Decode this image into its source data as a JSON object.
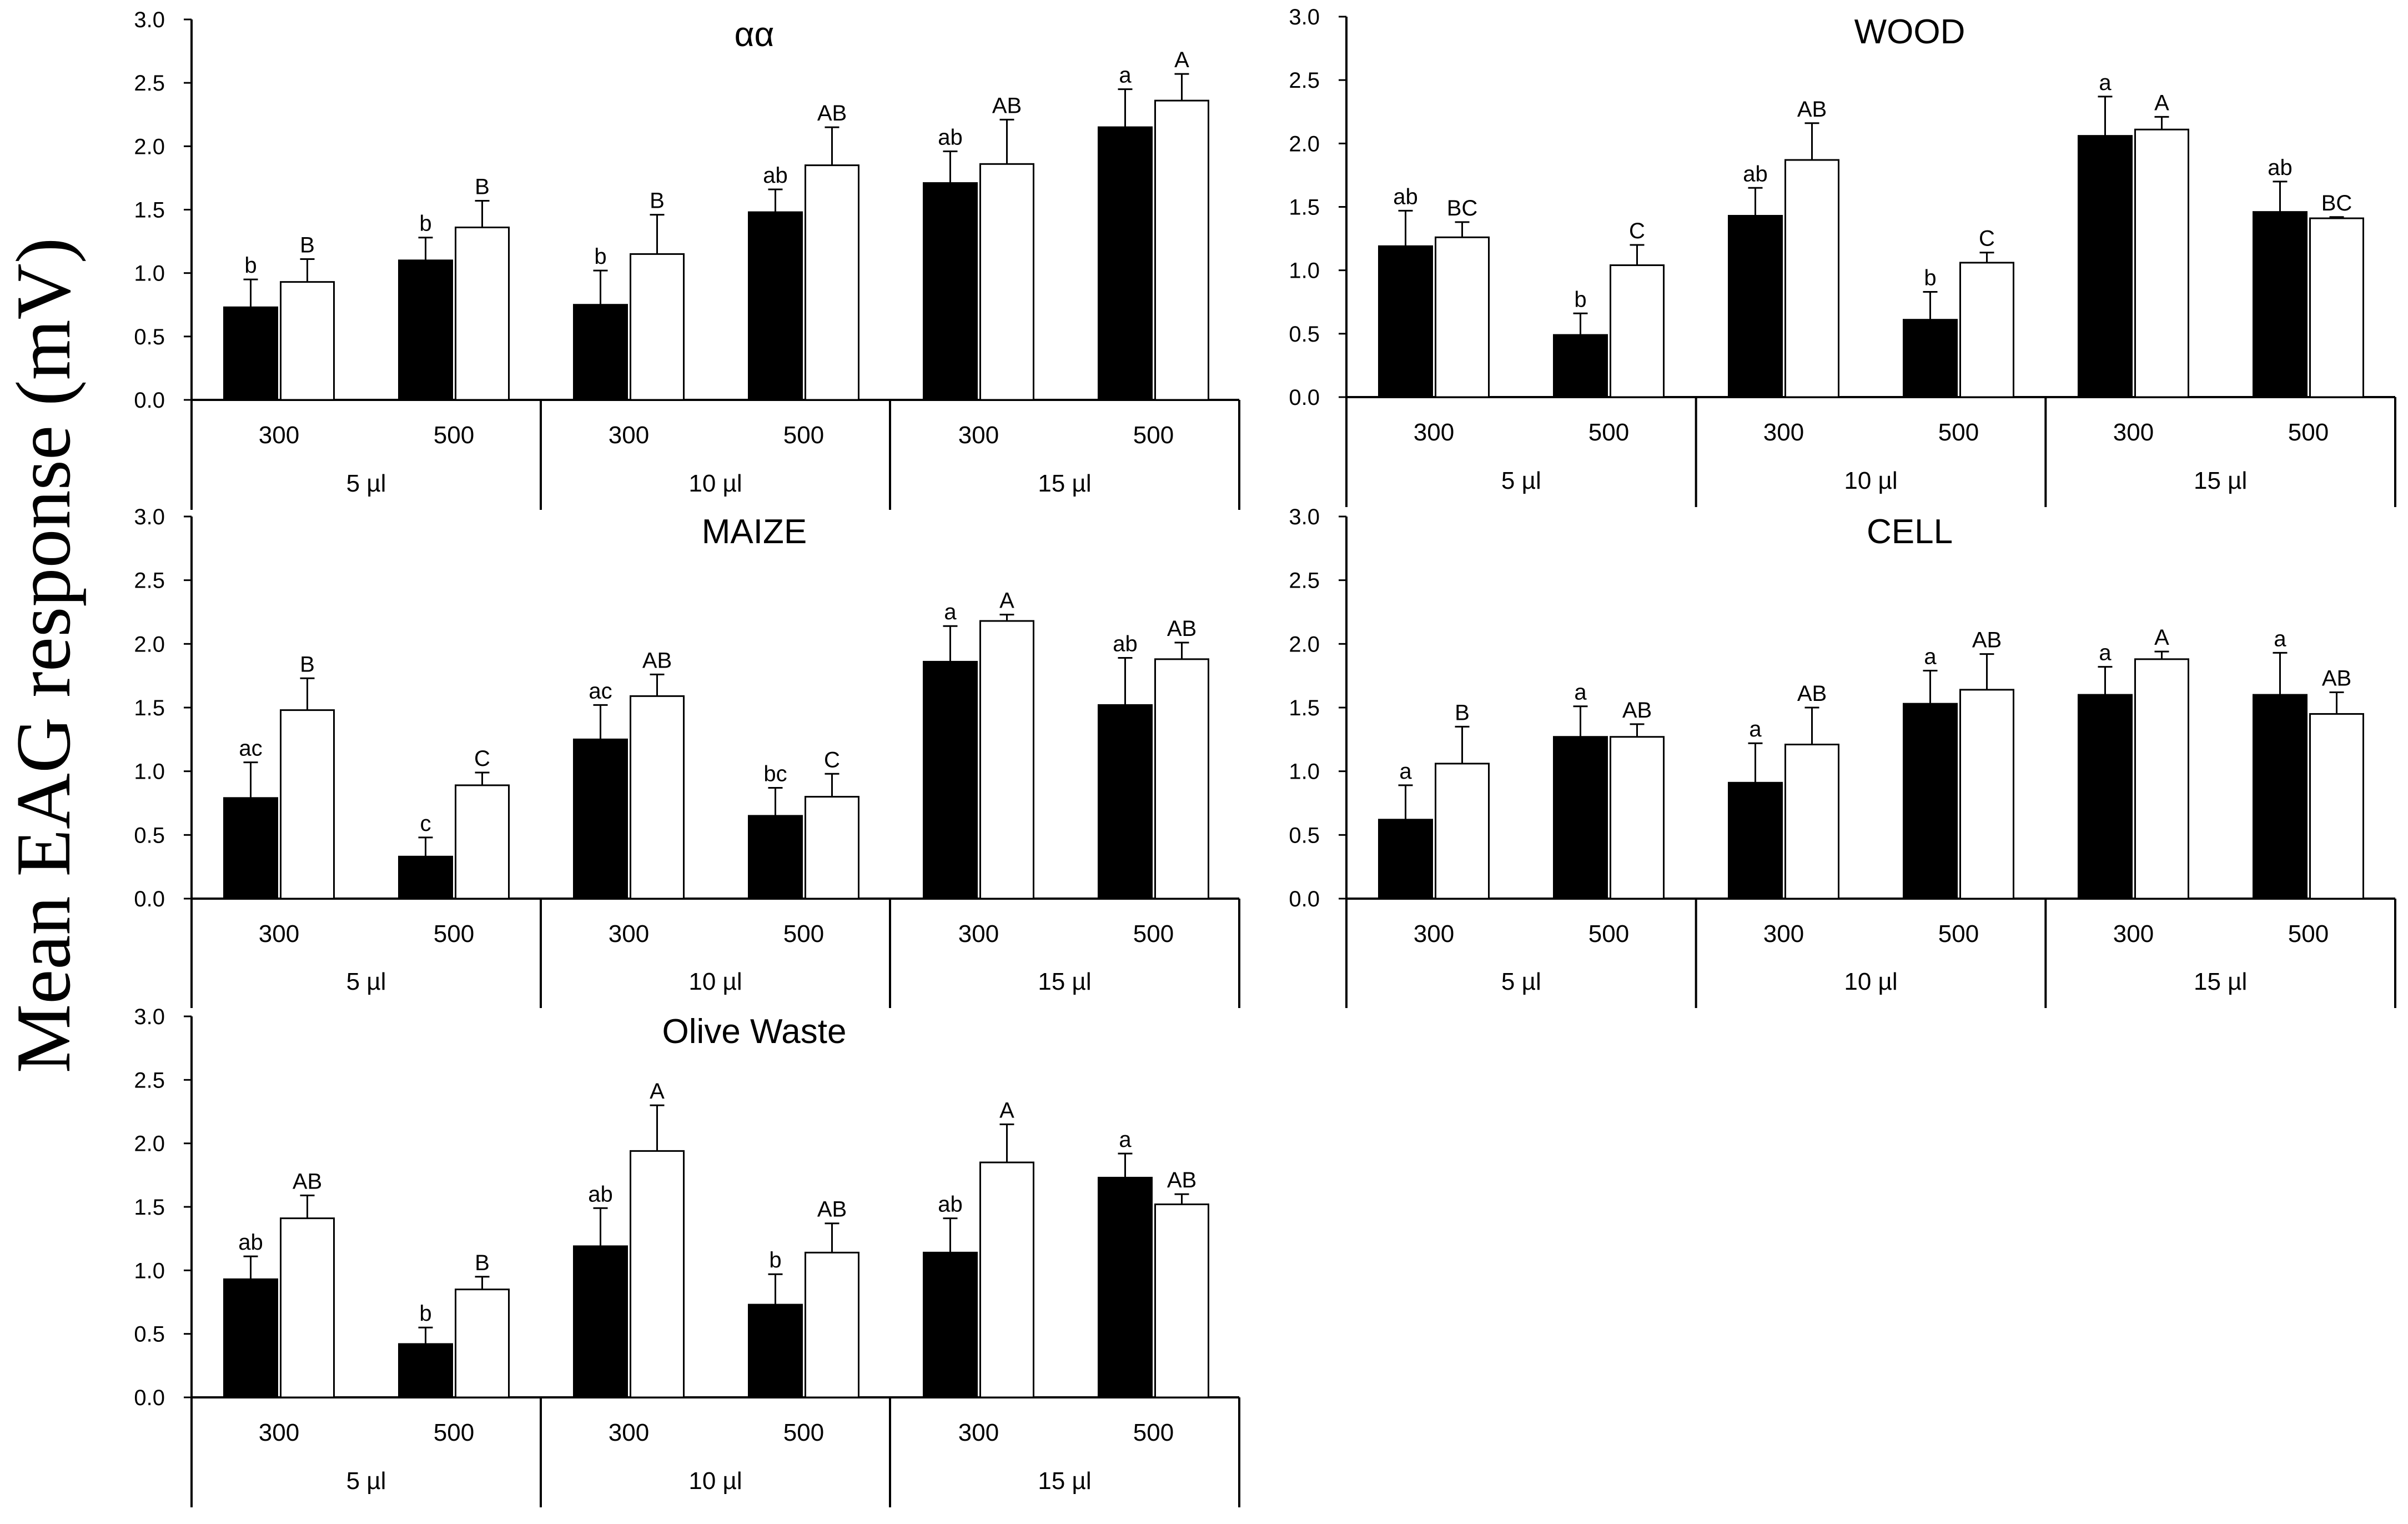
{
  "y_axis_title": "Mean EAG response (mV)",
  "colors": {
    "black_bar": "#000000",
    "white_bar": "#ffffff",
    "axis": "#000000"
  },
  "chart_data": [
    {
      "type": "bar",
      "title": "αα",
      "xlabel": "",
      "ylabel": "Mean EAG response (mV)",
      "ylim": [
        0,
        3.0
      ],
      "yticks": [
        "0.0",
        "0.5",
        "1.0",
        "1.5",
        "2.0",
        "2.5",
        "3.0"
      ],
      "groups": [
        "5 µl",
        "10 µl",
        "15 µl"
      ],
      "categories": [
        "300",
        "500",
        "300",
        "500",
        "300",
        "500"
      ],
      "series": [
        {
          "name": "black",
          "values": [
            0.73,
            1.1,
            0.75,
            1.48,
            1.71,
            2.15
          ],
          "errors": [
            0.22,
            0.18,
            0.27,
            0.18,
            0.25,
            0.3
          ],
          "labels": [
            "b",
            "b",
            "b",
            "ab",
            "ab",
            "a"
          ]
        },
        {
          "name": "white",
          "values": [
            0.93,
            1.36,
            1.15,
            1.85,
            1.86,
            2.36
          ],
          "errors": [
            0.18,
            0.21,
            0.31,
            0.3,
            0.35,
            0.21
          ],
          "labels": [
            "B",
            "B",
            "B",
            "AB",
            "AB",
            "A"
          ]
        }
      ]
    },
    {
      "type": "bar",
      "title": "WOOD",
      "xlabel": "",
      "ylabel": "Mean EAG response (mV)",
      "ylim": [
        0,
        3.0
      ],
      "yticks": [
        "0.0",
        "0.5",
        "1.0",
        "1.5",
        "2.0",
        "2.5",
        "3.0"
      ],
      "groups": [
        "5 µl",
        "10 µl",
        "15 µl"
      ],
      "categories": [
        "300",
        "500",
        "300",
        "500",
        "300",
        "500"
      ],
      "series": [
        {
          "name": "black",
          "values": [
            1.19,
            0.49,
            1.43,
            0.61,
            2.06,
            1.46
          ],
          "errors": [
            0.28,
            0.17,
            0.22,
            0.22,
            0.31,
            0.24
          ],
          "labels": [
            "ab",
            "b",
            "ab",
            "b",
            "a",
            "ab"
          ]
        },
        {
          "name": "white",
          "values": [
            1.26,
            1.04,
            1.87,
            1.06,
            2.11,
            1.41
          ],
          "errors": [
            0.12,
            0.16,
            0.29,
            0.08,
            0.1,
            0.01
          ],
          "labels": [
            "BC",
            "C",
            "AB",
            "C",
            "A",
            "BC"
          ]
        }
      ]
    },
    {
      "type": "bar",
      "title": "MAIZE",
      "xlabel": "",
      "ylabel": "Mean EAG response (mV)",
      "ylim": [
        0,
        3.0
      ],
      "yticks": [
        "0.0",
        "0.5",
        "1.0",
        "1.5",
        "2.0",
        "2.5",
        "3.0"
      ],
      "groups": [
        "5 µl",
        "10 µl",
        "15 µl"
      ],
      "categories": [
        "300",
        "500",
        "300",
        "500",
        "300",
        "500"
      ],
      "series": [
        {
          "name": "black",
          "values": [
            0.79,
            0.33,
            1.25,
            0.65,
            1.86,
            1.52
          ],
          "errors": [
            0.28,
            0.15,
            0.27,
            0.22,
            0.28,
            0.37
          ],
          "labels": [
            "ac",
            "c",
            "ac",
            "bc",
            "a",
            "ab"
          ]
        },
        {
          "name": "white",
          "values": [
            1.48,
            0.89,
            1.59,
            0.8,
            2.18,
            1.88
          ],
          "errors": [
            0.25,
            0.1,
            0.17,
            0.18,
            0.05,
            0.13
          ],
          "labels": [
            "B",
            "C",
            "AB",
            "C",
            "A",
            "AB"
          ]
        }
      ]
    },
    {
      "type": "bar",
      "title": "CELL",
      "xlabel": "",
      "ylabel": "Mean EAG response (mV)",
      "ylim": [
        0,
        3.0
      ],
      "yticks": [
        "0.0",
        "0.5",
        "1.0",
        "1.5",
        "2.0",
        "2.5",
        "3.0"
      ],
      "groups": [
        "5 µl",
        "10 µl",
        "15 µl"
      ],
      "categories": [
        "300",
        "500",
        "300",
        "500",
        "300",
        "500"
      ],
      "series": [
        {
          "name": "black",
          "values": [
            0.62,
            1.27,
            0.91,
            1.53,
            1.6,
            1.6
          ],
          "errors": [
            0.27,
            0.24,
            0.31,
            0.26,
            0.22,
            0.33
          ],
          "labels": [
            "a",
            "a",
            "a",
            "a",
            "a",
            "a"
          ]
        },
        {
          "name": "white",
          "values": [
            1.06,
            1.27,
            1.21,
            1.64,
            1.88,
            1.45
          ],
          "errors": [
            0.29,
            0.1,
            0.29,
            0.28,
            0.06,
            0.17
          ],
          "labels": [
            "B",
            "AB",
            "AB",
            "AB",
            "A",
            "AB"
          ]
        }
      ]
    },
    {
      "type": "bar",
      "title": "Olive Waste",
      "xlabel": "",
      "ylabel": "Mean EAG response (mV)",
      "ylim": [
        0,
        3.0
      ],
      "yticks": [
        "0.0",
        "0.5",
        "1.0",
        "1.5",
        "2.0",
        "2.5",
        "3.0"
      ],
      "groups": [
        "5 µl",
        "10 µl",
        "15 µl"
      ],
      "categories": [
        "300",
        "500",
        "300",
        "500",
        "300",
        "500"
      ],
      "series": [
        {
          "name": "black",
          "values": [
            0.93,
            0.42,
            1.19,
            0.73,
            1.14,
            1.73
          ],
          "errors": [
            0.18,
            0.13,
            0.3,
            0.24,
            0.27,
            0.19
          ],
          "labels": [
            "ab",
            "b",
            "ab",
            "b",
            "ab",
            "a"
          ]
        },
        {
          "name": "white",
          "values": [
            1.41,
            0.85,
            1.94,
            1.14,
            1.85,
            1.52
          ],
          "errors": [
            0.18,
            0.1,
            0.36,
            0.23,
            0.3,
            0.08
          ],
          "labels": [
            "AB",
            "B",
            "A",
            "AB",
            "A",
            "AB"
          ]
        }
      ]
    }
  ]
}
